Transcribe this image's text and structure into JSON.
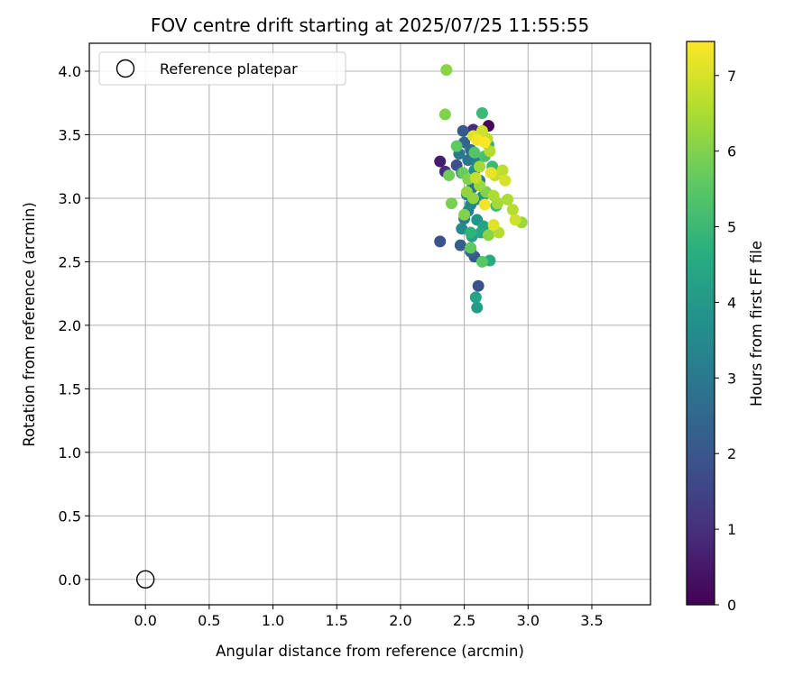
{
  "chart_data": {
    "type": "scatter",
    "title": "FOV centre drift starting at 2025/07/25 11:55:55",
    "xlabel": "Angular distance from reference (arcmin)",
    "ylabel": "Rotation from reference (arcmin)",
    "xlim": [
      -0.44,
      3.96
    ],
    "ylim": [
      -0.2,
      4.22
    ],
    "xticks": [
      "0.0",
      "0.5",
      "1.0",
      "1.5",
      "2.0",
      "2.5",
      "3.0",
      "3.5"
    ],
    "yticks": [
      "0.0",
      "0.5",
      "1.0",
      "1.5",
      "2.0",
      "2.5",
      "3.0",
      "3.5",
      "4.0"
    ],
    "grid": true,
    "legend": {
      "placement": "upper-left",
      "label": "Reference platepar",
      "marker": "open-circle"
    },
    "reference_point": {
      "x": 0.0,
      "y": 0.0
    },
    "colorbar": {
      "label": "Hours from first FF file",
      "range": [
        0,
        7.45
      ],
      "ticks": [
        "0",
        "1",
        "2",
        "3",
        "4",
        "5",
        "6",
        "7"
      ],
      "colormap": "viridis"
    },
    "series": [
      {
        "colored_by": "hours",
        "points": [
          [
            2.69,
            3.57,
            0.2
          ],
          [
            2.57,
            3.54,
            0.9
          ],
          [
            2.31,
            3.29,
            0.6
          ],
          [
            2.35,
            3.21,
            1.0
          ],
          [
            2.49,
            3.53,
            2.1
          ],
          [
            2.44,
            3.26,
            1.8
          ],
          [
            2.5,
            3.44,
            2.4
          ],
          [
            2.55,
            3.38,
            2.6
          ],
          [
            2.46,
            3.35,
            3.0
          ],
          [
            2.53,
            3.3,
            2.9
          ],
          [
            2.6,
            3.28,
            3.2
          ],
          [
            2.48,
            3.2,
            3.4
          ],
          [
            2.58,
            3.22,
            3.6
          ],
          [
            2.62,
            3.14,
            3.1
          ],
          [
            2.56,
            3.08,
            2.8
          ],
          [
            2.52,
            3.03,
            3.3
          ],
          [
            2.59,
            2.99,
            3.5
          ],
          [
            2.55,
            2.95,
            3.4
          ],
          [
            2.64,
            3.01,
            3.7
          ],
          [
            2.53,
            2.9,
            3.2
          ],
          [
            2.6,
            2.83,
            3.9
          ],
          [
            2.5,
            2.84,
            3.0
          ],
          [
            2.31,
            2.66,
            1.9
          ],
          [
            2.47,
            2.63,
            2.2
          ],
          [
            2.55,
            2.58,
            2.4
          ],
          [
            2.58,
            2.54,
            2.0
          ],
          [
            2.61,
            2.31,
            1.9
          ],
          [
            2.48,
            2.76,
            3.5
          ],
          [
            2.56,
            2.7,
            4.2
          ],
          [
            2.63,
            2.73,
            4.4
          ],
          [
            2.65,
            2.78,
            4.3
          ],
          [
            2.59,
            2.22,
            4.3
          ],
          [
            2.6,
            2.14,
            4.1
          ],
          [
            2.7,
            2.51,
            4.5
          ],
          [
            2.55,
            2.73,
            4.8
          ],
          [
            2.64,
            3.67,
            5.0
          ],
          [
            2.69,
            3.42,
            4.9
          ],
          [
            2.72,
            3.25,
            5.0
          ],
          [
            2.75,
            2.94,
            5.1
          ],
          [
            2.66,
            3.33,
            5.2
          ],
          [
            2.58,
            3.36,
            5.4
          ],
          [
            2.44,
            3.41,
            5.6
          ],
          [
            2.36,
            4.01,
            6.1
          ],
          [
            2.35,
            3.66,
            6.0
          ],
          [
            2.38,
            3.18,
            5.8
          ],
          [
            2.49,
            3.2,
            5.7
          ],
          [
            2.4,
            2.96,
            5.9
          ],
          [
            2.5,
            2.87,
            6.0
          ],
          [
            2.55,
            2.61,
            5.6
          ],
          [
            2.64,
            2.5,
            5.5
          ],
          [
            2.53,
            3.15,
            6.0
          ],
          [
            2.57,
            3.0,
            6.2
          ],
          [
            2.62,
            3.1,
            6.3
          ],
          [
            2.67,
            3.05,
            6.0
          ],
          [
            2.69,
            2.71,
            6.1
          ],
          [
            2.73,
            3.02,
            6.5
          ],
          [
            2.77,
            2.73,
            6.6
          ],
          [
            2.68,
            3.47,
            6.7
          ],
          [
            2.64,
            3.53,
            6.9
          ],
          [
            2.6,
            3.46,
            7.3
          ],
          [
            2.57,
            3.49,
            7.1
          ],
          [
            2.66,
            3.44,
            7.4
          ],
          [
            2.7,
            3.37,
            6.6
          ],
          [
            2.62,
            3.25,
            6.4
          ],
          [
            2.59,
            3.16,
            6.8
          ],
          [
            2.74,
            3.18,
            6.8
          ],
          [
            2.8,
            3.22,
            6.7
          ],
          [
            2.82,
            3.14,
            7.0
          ],
          [
            2.71,
            3.2,
            7.2
          ],
          [
            2.84,
            2.99,
            6.5
          ],
          [
            2.88,
            2.91,
            6.6
          ],
          [
            2.95,
            2.81,
            6.3
          ],
          [
            2.9,
            2.83,
            6.9
          ],
          [
            2.76,
            2.96,
            6.4
          ],
          [
            2.66,
            2.95,
            7.3
          ],
          [
            2.73,
            2.79,
            7.1
          ],
          [
            2.52,
            3.05,
            6.2
          ]
        ]
      }
    ]
  }
}
